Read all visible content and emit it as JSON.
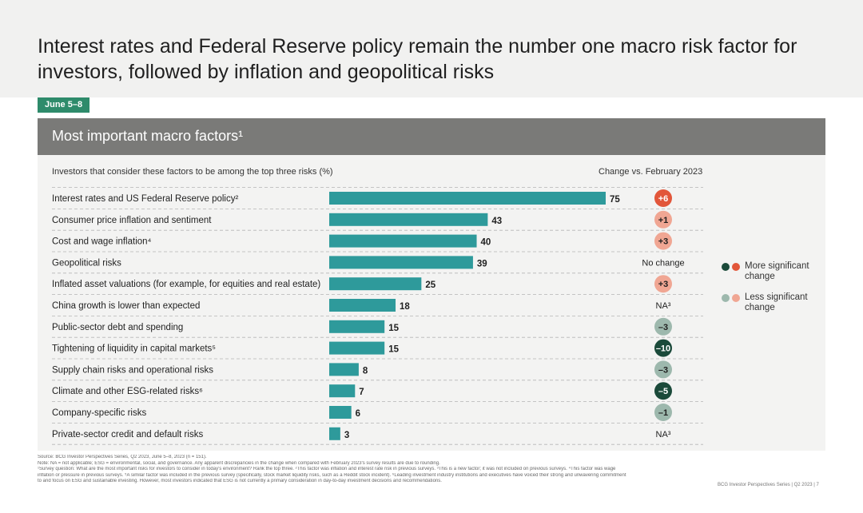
{
  "title": "Interest rates and Federal Reserve policy remain the number one macro risk factor for investors, followed by inflation and geopolitical risks",
  "date_tag": "June 5–8",
  "panel_title": "Most important macro factors¹",
  "subhead_left": "Investors that consider these factors to be among the top three risks (%)",
  "subhead_right": "Change vs. February 2023",
  "legend": {
    "more": {
      "label": "More significant change",
      "colors": [
        "#1b4a3a",
        "#e2563a"
      ]
    },
    "less": {
      "label": "Less significant change",
      "colors": [
        "#9db8ad",
        "#f0a693"
      ]
    }
  },
  "colors": {
    "bar": "#2e9a9b",
    "dash": "#b5b5b5"
  },
  "chart_data": {
    "type": "bar",
    "orientation": "horizontal",
    "categories": [
      "Interest rates and US Federal Reserve policy²",
      "Consumer price inflation and sentiment",
      "Cost and wage inflation⁴",
      "Geopolitical risks",
      "Inflated asset valuations (for example, for equities and real estate)",
      "China growth is lower than expected",
      "Public-sector debt and spending",
      "Tightening of liquidity in capital markets⁵",
      "Supply chain risks and operational risks",
      "Climate and other ESG-related risks⁶",
      "Company-specific risks",
      "Private-sector credit and default risks"
    ],
    "values": [
      75,
      43,
      40,
      39,
      25,
      18,
      15,
      15,
      8,
      7,
      6,
      3
    ],
    "xlim": [
      0,
      75
    ],
    "changes": [
      {
        "text": "+6",
        "kind": "badge",
        "bg": "#e2563a",
        "fg": "#ffffff"
      },
      {
        "text": "+1",
        "kind": "badge",
        "bg": "#f0a693",
        "fg": "#1f1f1f"
      },
      {
        "text": "+3",
        "kind": "badge",
        "bg": "#f0a693",
        "fg": "#1f1f1f"
      },
      {
        "text": "No change",
        "kind": "text"
      },
      {
        "text": "+3",
        "kind": "badge",
        "bg": "#f0a693",
        "fg": "#1f1f1f"
      },
      {
        "text": "NA³",
        "kind": "text"
      },
      {
        "text": "–3",
        "kind": "badge",
        "bg": "#9db8ad",
        "fg": "#1f1f1f"
      },
      {
        "text": "–10",
        "kind": "badge",
        "bg": "#1b4a3a",
        "fg": "#ffffff"
      },
      {
        "text": "–3",
        "kind": "badge",
        "bg": "#9db8ad",
        "fg": "#1f1f1f"
      },
      {
        "text": "–5",
        "kind": "badge",
        "bg": "#1b4a3a",
        "fg": "#ffffff"
      },
      {
        "text": "–1",
        "kind": "badge",
        "bg": "#9db8ad",
        "fg": "#1f1f1f"
      },
      {
        "text": "NA³",
        "kind": "text"
      }
    ]
  },
  "footnotes": [
    "Source: BCG Investor Perspectives Series, Q2 2023, June 5–8, 2023 (n = 151).",
    "Note: NA = not applicable; ESG = environmental, social, and governance. Any apparent discrepancies in the change when compared with February 2023's survey results are due to rounding.",
    "¹Survey question: What are the most important risks for investors to consider in today's environment? Rank the top three. ²This factor was inflation and interest rate risk in previous surveys. ³This is a new factor; it was not included on previous surveys. ⁴This factor was wage",
    "inflation or pressure in previous surveys. ⁵A similar factor was included in the previous survey (specifically, stock market liquidity risks, such as a Reddit stock incident). ⁶Leading investment industry institutions and executives have voiced their strong and unwavering commitment",
    "to and focus on ESG and sustainable investing. However, most investors indicated that ESG is not currently a primary consideration in day-to-day investment decisions and recommendations."
  ],
  "footer_right": "BCG Investor Perspectives Series | Q2 2023 | 7"
}
